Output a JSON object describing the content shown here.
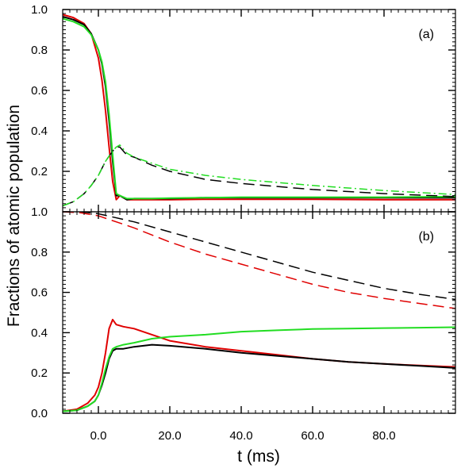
{
  "figure": {
    "ylabel": "Fractions of atomic population",
    "xlabel": "t (ms)"
  },
  "chart_data": [
    {
      "type": "line",
      "panel_label": "(a)",
      "xlim": [
        -10,
        100
      ],
      "ylim": [
        0,
        1.0
      ],
      "xticks": [
        0,
        20,
        40,
        60,
        80
      ],
      "yticks": [
        0,
        0.2,
        0.4,
        0.6,
        0.8,
        1.0
      ],
      "ytick_labels": [
        "",
        "0.2",
        "0.4",
        "0.6",
        "0.8",
        "1.0"
      ],
      "grid": false,
      "series": [
        {
          "color": "#e00000",
          "style": "solid",
          "x": [
            -10,
            -7,
            -4,
            -2,
            0,
            1,
            2,
            3,
            4,
            5,
            6,
            8,
            10,
            15,
            20,
            30,
            40,
            60,
            80,
            100
          ],
          "y": [
            0.975,
            0.96,
            0.93,
            0.88,
            0.76,
            0.65,
            0.5,
            0.32,
            0.15,
            0.06,
            0.08,
            0.06,
            0.06,
            0.06,
            0.06,
            0.062,
            0.062,
            0.062,
            0.06,
            0.06
          ]
        },
        {
          "color": "#000000",
          "style": "solid",
          "x": [
            -10,
            -7,
            -4,
            -2,
            0,
            1,
            2,
            3,
            4,
            5,
            6,
            8,
            10,
            15,
            20,
            30,
            40,
            60,
            80,
            100
          ],
          "y": [
            0.965,
            0.95,
            0.925,
            0.88,
            0.8,
            0.73,
            0.62,
            0.45,
            0.25,
            0.08,
            0.08,
            0.06,
            0.065,
            0.065,
            0.065,
            0.07,
            0.07,
            0.07,
            0.07,
            0.07
          ]
        },
        {
          "color": "#22dd22",
          "style": "solid",
          "x": [
            -10,
            -7,
            -4,
            -2,
            0,
            1,
            2,
            3,
            4,
            5,
            6,
            8,
            10,
            15,
            20,
            30,
            40,
            60,
            80,
            100
          ],
          "y": [
            0.955,
            0.94,
            0.915,
            0.875,
            0.8,
            0.74,
            0.64,
            0.48,
            0.28,
            0.09,
            0.08,
            0.065,
            0.065,
            0.065,
            0.068,
            0.07,
            0.072,
            0.072,
            0.072,
            0.075
          ]
        },
        {
          "color": "#000000",
          "style": "dashed",
          "x": [
            -10,
            -7,
            -4,
            -2,
            0,
            2,
            4,
            5,
            6,
            8,
            10,
            15,
            20,
            30,
            40,
            60,
            80,
            100
          ],
          "y": [
            0.03,
            0.05,
            0.09,
            0.13,
            0.18,
            0.25,
            0.3,
            0.32,
            0.32,
            0.28,
            0.27,
            0.23,
            0.2,
            0.16,
            0.14,
            0.11,
            0.09,
            0.075
          ]
        },
        {
          "color": "#22dd22",
          "style": "dashdot",
          "x": [
            -10,
            -7,
            -4,
            -2,
            0,
            2,
            4,
            5,
            6,
            8,
            10,
            15,
            20,
            30,
            40,
            60,
            80,
            100
          ],
          "y": [
            0.03,
            0.05,
            0.09,
            0.13,
            0.18,
            0.25,
            0.3,
            0.32,
            0.33,
            0.29,
            0.27,
            0.24,
            0.21,
            0.18,
            0.16,
            0.13,
            0.105,
            0.085
          ]
        }
      ]
    },
    {
      "type": "line",
      "panel_label": "(b)",
      "xlim": [
        -10,
        100
      ],
      "ylim": [
        0,
        1.0
      ],
      "xticks": [
        0,
        20,
        40,
        60,
        80
      ],
      "xtick_labels": [
        "0.0",
        "20.0",
        "40.0",
        "60.0",
        "80.0"
      ],
      "yticks": [
        0,
        0.2,
        0.4,
        0.6,
        0.8,
        1.0
      ],
      "ytick_labels": [
        "0.0",
        "0.2",
        "0.4",
        "0.6",
        "0.8",
        "1.0"
      ],
      "grid": false,
      "series": [
        {
          "color": "#000000",
          "style": "dashed",
          "x": [
            -10,
            -5,
            0,
            10,
            20,
            30,
            40,
            50,
            60,
            70,
            80,
            90,
            100
          ],
          "y": [
            1.0,
            1.0,
            0.99,
            0.95,
            0.9,
            0.85,
            0.8,
            0.75,
            0.7,
            0.66,
            0.62,
            0.59,
            0.565
          ]
        },
        {
          "color": "#e00000",
          "style": "dashed",
          "x": [
            -10,
            -5,
            0,
            10,
            20,
            30,
            40,
            50,
            60,
            70,
            80,
            90,
            100
          ],
          "y": [
            1.0,
            0.995,
            0.98,
            0.92,
            0.85,
            0.79,
            0.74,
            0.69,
            0.64,
            0.6,
            0.57,
            0.545,
            0.52
          ]
        },
        {
          "color": "#e00000",
          "style": "solid",
          "x": [
            -10,
            -6,
            -3,
            -1,
            0,
            1,
            2,
            3,
            4,
            5,
            7,
            10,
            15,
            20,
            30,
            40,
            50,
            60,
            70,
            80,
            90,
            100
          ],
          "y": [
            0.01,
            0.02,
            0.05,
            0.09,
            0.13,
            0.2,
            0.3,
            0.42,
            0.465,
            0.44,
            0.43,
            0.42,
            0.39,
            0.36,
            0.33,
            0.31,
            0.29,
            0.27,
            0.255,
            0.245,
            0.237,
            0.23
          ]
        },
        {
          "color": "#000000",
          "style": "solid",
          "x": [
            -10,
            -6,
            -3,
            -1,
            0,
            1,
            2,
            3,
            4,
            5,
            7,
            10,
            15,
            20,
            30,
            40,
            50,
            60,
            70,
            80,
            90,
            100
          ],
          "y": [
            0.01,
            0.015,
            0.035,
            0.06,
            0.09,
            0.14,
            0.2,
            0.27,
            0.31,
            0.32,
            0.32,
            0.33,
            0.34,
            0.335,
            0.32,
            0.3,
            0.285,
            0.27,
            0.255,
            0.245,
            0.235,
            0.225
          ]
        },
        {
          "color": "#22dd22",
          "style": "solid",
          "x": [
            -10,
            -6,
            -3,
            -1,
            0,
            1,
            2,
            3,
            4,
            5,
            7,
            10,
            15,
            20,
            30,
            40,
            50,
            60,
            70,
            80,
            90,
            100
          ],
          "y": [
            0.01,
            0.015,
            0.035,
            0.06,
            0.09,
            0.15,
            0.22,
            0.28,
            0.32,
            0.33,
            0.34,
            0.35,
            0.37,
            0.38,
            0.39,
            0.405,
            0.412,
            0.418,
            0.42,
            0.423,
            0.425,
            0.427
          ]
        }
      ]
    }
  ]
}
